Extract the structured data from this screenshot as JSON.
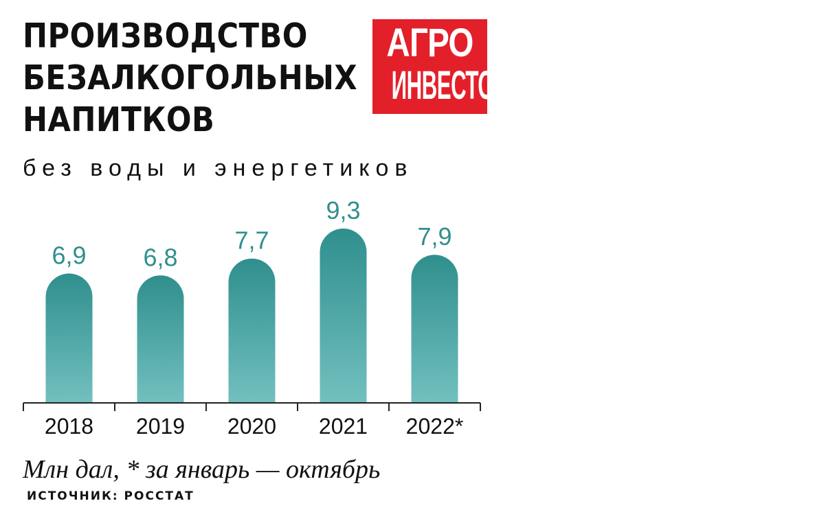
{
  "header": {
    "title_lines": [
      "ПРОИЗВОДСТВО",
      "БЕЗАЛКОГОЛЬНЫХ",
      "НАПИТКОВ"
    ],
    "subtitle": "без воды и энергетиков"
  },
  "logo": {
    "line1": "АГРО",
    "line2": "ИНВЕСТОР",
    "color": "#e3202a"
  },
  "chart_data": {
    "type": "bar",
    "title": "ПРОИЗВОДСТВО БЕЗАЛКОГОЛЬНЫХ НАПИТКОВ",
    "subtitle": "без воды и энергетиков",
    "categories": [
      "2018",
      "2019",
      "2020",
      "2021",
      "2022*"
    ],
    "values": [
      6.9,
      6.8,
      7.7,
      9.3,
      7.9
    ],
    "value_labels": [
      "6,9",
      "6,8",
      "7,7",
      "9,3",
      "7,9"
    ],
    "ylim": [
      0,
      9.3
    ],
    "grid": false,
    "colors": {
      "bar_top": "#2f8f8d",
      "bar_bottom": "#72c0bf",
      "label": "#2f8f8d",
      "axis": "#222222"
    }
  },
  "footer": {
    "note": "Млн дал, * за январь — октябрь",
    "source": "ИСТОЧНИК: РОССТАТ"
  }
}
